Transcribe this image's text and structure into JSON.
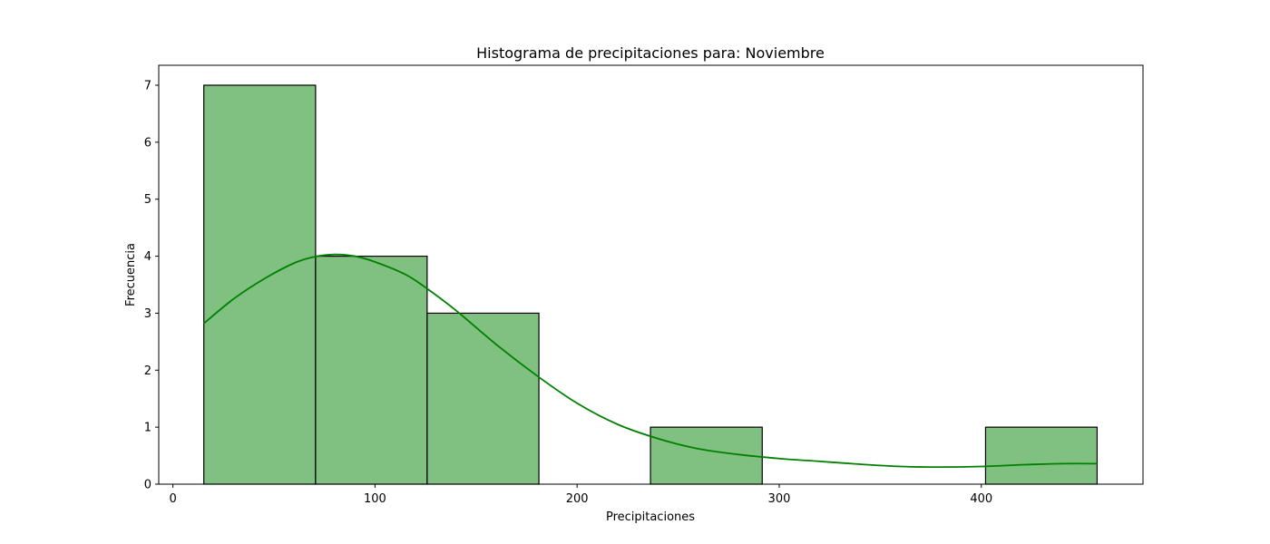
{
  "chart_data": {
    "type": "histogram",
    "title": "Histograma de precipitaciones para: Noviembre",
    "xlabel": "Precipitaciones",
    "ylabel": "Frecuencia",
    "xlim": [
      -7,
      480
    ],
    "ylim": [
      0,
      7.35
    ],
    "xticks": [
      0,
      100,
      200,
      300,
      400
    ],
    "xtick_labels": [
      "0",
      "100",
      "200",
      "300",
      "400"
    ],
    "yticks": [
      0,
      1,
      2,
      3,
      4,
      5,
      6,
      7
    ],
    "ytick_labels": [
      "0",
      "1",
      "2",
      "3",
      "4",
      "5",
      "6",
      "7"
    ],
    "bins": [
      {
        "start": 15.3,
        "end": 70.6,
        "count": 7
      },
      {
        "start": 70.6,
        "end": 125.8,
        "count": 4
      },
      {
        "start": 125.8,
        "end": 181.1,
        "count": 3
      },
      {
        "start": 181.1,
        "end": 236.3,
        "count": 0
      },
      {
        "start": 236.3,
        "end": 291.6,
        "count": 1
      },
      {
        "start": 291.6,
        "end": 346.8,
        "count": 0
      },
      {
        "start": 346.8,
        "end": 402.1,
        "count": 0
      },
      {
        "start": 402.1,
        "end": 457.3,
        "count": 1
      }
    ],
    "kde": {
      "x": [
        15.3,
        30,
        45,
        60,
        70,
        80,
        90,
        100,
        115,
        125,
        140,
        160,
        181,
        200,
        220,
        240,
        260,
        280,
        300,
        320,
        340,
        360,
        380,
        400,
        420,
        440,
        457.3
      ],
      "y": [
        2.82,
        3.25,
        3.6,
        3.88,
        3.99,
        4.03,
        4.0,
        3.9,
        3.68,
        3.45,
        3.05,
        2.45,
        1.88,
        1.42,
        1.05,
        0.8,
        0.62,
        0.52,
        0.45,
        0.4,
        0.35,
        0.31,
        0.3,
        0.31,
        0.34,
        0.36,
        0.36
      ]
    },
    "colors": {
      "bar_fill": "#80c080",
      "bar_edge": "#000000",
      "kde_line": "#008000",
      "axes": "#000000"
    },
    "grid": false,
    "legend": "none"
  }
}
